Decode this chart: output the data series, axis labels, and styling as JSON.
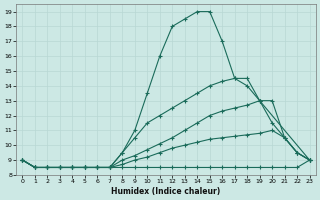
{
  "xlabel": "Humidex (Indice chaleur)",
  "xlim": [
    -0.5,
    23.5
  ],
  "ylim": [
    8,
    19.5
  ],
  "yticks": [
    8,
    9,
    10,
    11,
    12,
    13,
    14,
    15,
    16,
    17,
    18,
    19
  ],
  "xticks": [
    0,
    1,
    2,
    3,
    4,
    5,
    6,
    7,
    8,
    9,
    10,
    11,
    12,
    13,
    14,
    15,
    16,
    17,
    18,
    19,
    20,
    21,
    22,
    23
  ],
  "bg_color": "#cce8e4",
  "line_color": "#1a6b5a",
  "grid_color": "#b8d8d4",
  "lines": [
    {
      "x": [
        0,
        1,
        2,
        3,
        4,
        5,
        6,
        7,
        8,
        9,
        10,
        11,
        12,
        13,
        14,
        15,
        16,
        17,
        18,
        19,
        20,
        21,
        22,
        23
      ],
      "y": [
        9.0,
        8.5,
        8.5,
        8.5,
        8.5,
        8.5,
        8.5,
        8.5,
        8.5,
        8.5,
        8.5,
        8.5,
        8.5,
        8.5,
        8.5,
        8.5,
        8.5,
        8.5,
        8.5,
        8.5,
        8.5,
        8.5,
        8.5,
        9.0
      ]
    },
    {
      "x": [
        0,
        1,
        2,
        3,
        4,
        5,
        6,
        7,
        8,
        9,
        10,
        11,
        12,
        13,
        14,
        15,
        16,
        17,
        18,
        19,
        20,
        21,
        22,
        23
      ],
      "y": [
        9.0,
        8.5,
        8.5,
        8.5,
        8.5,
        8.5,
        8.5,
        8.5,
        8.7,
        9.0,
        9.2,
        9.5,
        9.8,
        10.0,
        10.2,
        10.4,
        10.5,
        10.6,
        10.7,
        10.8,
        11.0,
        10.5,
        9.5,
        9.0
      ]
    },
    {
      "x": [
        0,
        1,
        2,
        3,
        4,
        5,
        6,
        7,
        8,
        9,
        10,
        11,
        12,
        13,
        14,
        15,
        16,
        17,
        18,
        19,
        20,
        21,
        22,
        23
      ],
      "y": [
        9.0,
        8.5,
        8.5,
        8.5,
        8.5,
        8.5,
        8.5,
        8.5,
        9.0,
        9.3,
        9.7,
        10.1,
        10.5,
        11.0,
        11.5,
        12.0,
        12.3,
        12.5,
        12.7,
        13.0,
        13.0,
        10.5,
        9.5,
        9.0
      ]
    },
    {
      "x": [
        0,
        1,
        2,
        3,
        4,
        5,
        6,
        7,
        8,
        9,
        10,
        11,
        12,
        13,
        14,
        15,
        16,
        17,
        18,
        19,
        20,
        21,
        22,
        23
      ],
      "y": [
        9.0,
        8.5,
        8.5,
        8.5,
        8.5,
        8.5,
        8.5,
        8.5,
        9.5,
        10.5,
        11.5,
        12.0,
        12.5,
        13.0,
        13.5,
        14.0,
        14.3,
        14.5,
        14.5,
        13.0,
        11.5,
        10.5,
        9.5,
        9.0
      ]
    },
    {
      "x": [
        0,
        1,
        2,
        3,
        4,
        5,
        6,
        7,
        8,
        9,
        10,
        11,
        12,
        13,
        14,
        15,
        16,
        17,
        18,
        19,
        23
      ],
      "y": [
        9.0,
        8.5,
        8.5,
        8.5,
        8.5,
        8.5,
        8.5,
        8.5,
        9.5,
        11.0,
        13.5,
        16.0,
        18.0,
        18.5,
        19.0,
        19.0,
        17.0,
        14.5,
        14.0,
        13.0,
        9.0
      ]
    }
  ]
}
